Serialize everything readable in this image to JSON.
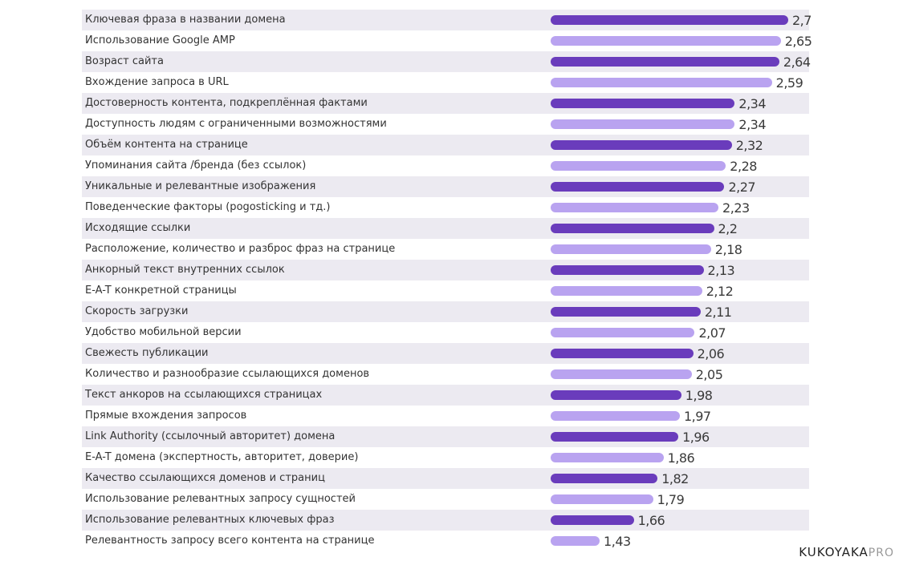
{
  "colors": {
    "dark_bar": "#6a3cbc",
    "light_bar": "#b9a3f0",
    "row_shade": "#eceaf1"
  },
  "brand": {
    "name": "KUKOYAKA",
    "suffix": "PRO"
  },
  "chart_data": {
    "type": "bar",
    "orientation": "horizontal",
    "categories": [
      "Ключевая фраза в названии домена",
      "Использование Google AMP",
      "Возраст сайта",
      "Вхождение запроса в URL",
      "Достоверность контента, подкреплённая фактами",
      "Доступность людям с ограниченными возможностями",
      "Объём контента на странице",
      "Упоминания сайта /бренда (без ссылок)",
      "Уникальные и релевантные изображения",
      "Поведенческие факторы (pogosticking и тд.)",
      "Исходящие ссылки",
      "Расположение, количество и разброс фраз на странице",
      "Анкорный текст внутренних ссылок",
      "E-A-T конкретной страницы",
      "Скорость загрузки",
      "Удобство мобильной версии",
      "Свежесть публикации",
      "Количество и разнообразие ссылающихся доменов",
      "Текст анкоров на ссылающихся страницах",
      "Прямые вхождения запросов",
      "Link Authority (ссылочный авторитет) домена",
      "E-A-T домена (экспертность, авторитет, доверие)",
      "Качество ссылающихся доменов и страниц",
      "Использование релевантных запросу сущностей",
      "Использование релевантных ключевых фраз",
      "Релевантность запросу всего контента на странице"
    ],
    "values": [
      2.7,
      2.65,
      2.64,
      2.59,
      2.34,
      2.34,
      2.32,
      2.28,
      2.27,
      2.23,
      2.2,
      2.18,
      2.13,
      2.12,
      2.11,
      2.07,
      2.06,
      2.05,
      1.98,
      1.97,
      1.96,
      1.86,
      1.82,
      1.79,
      1.66,
      1.43
    ],
    "value_labels": [
      "2,7",
      "2,65",
      "2,64",
      "2,59",
      "2,34",
      "2,34",
      "2,32",
      "2,28",
      "2,27",
      "2,23",
      "2,2",
      "2,18",
      "2,13",
      "2,12",
      "2,11",
      "2,07",
      "2,06",
      "2,05",
      "1,98",
      "1,97",
      "1,96",
      "1,86",
      "1,82",
      "1,79",
      "1,66",
      "1,43"
    ],
    "xlim": [
      1.1,
      2.7
    ],
    "title": "",
    "xlabel": "",
    "ylabel": "",
    "grid": false,
    "legend": "none"
  }
}
